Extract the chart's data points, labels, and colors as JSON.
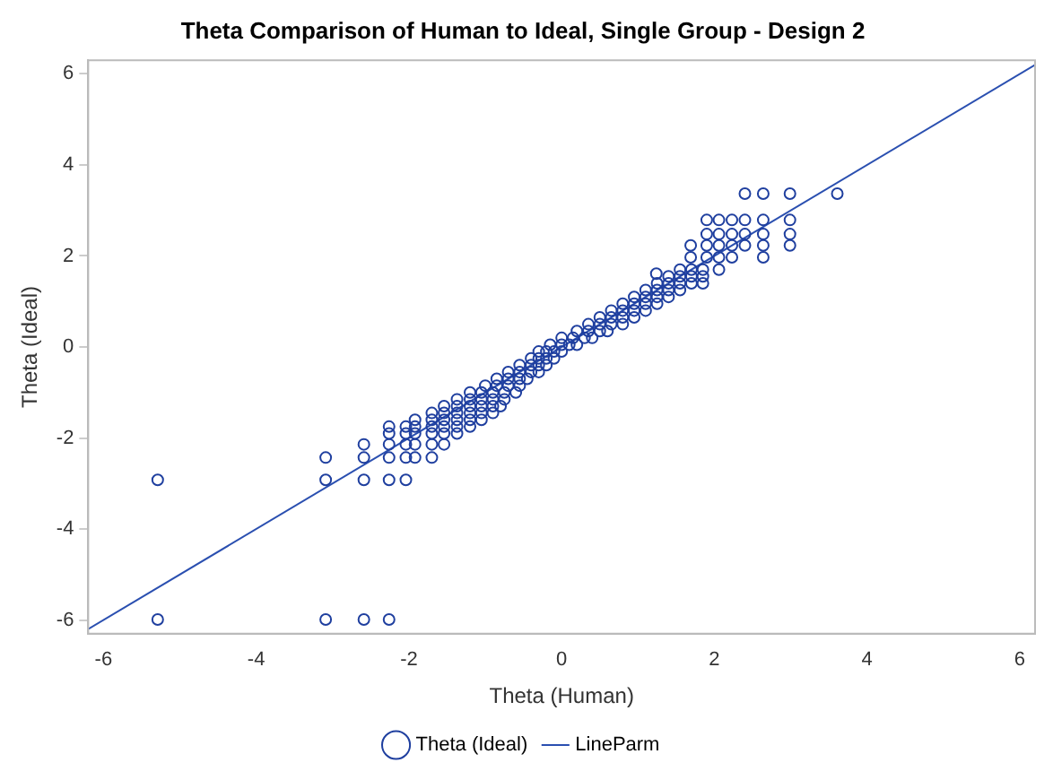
{
  "chart_data": {
    "type": "scatter",
    "title": "Theta Comparison of Human to Ideal, Single Group - Design 2",
    "xlabel": "Theta (Human)",
    "ylabel": "Theta (Ideal)",
    "xlim": [
      -6.2,
      6.2
    ],
    "ylim": [
      -6.3,
      6.3
    ],
    "xticks": [
      -6,
      -4,
      -2,
      0,
      2,
      4,
      6
    ],
    "yticks": [
      -6,
      -4,
      -2,
      0,
      2,
      4,
      6
    ],
    "grid": false,
    "legend": "bottom",
    "marker": "circle",
    "series": [
      {
        "name": "Theta (Ideal)",
        "color": "#1f3f9f",
        "x": [
          -5.29,
          -5.29,
          -3.09,
          -2.59,
          -2.26,
          -3.09,
          -2.59,
          -2.26,
          -2.04,
          -3.09,
          -2.59,
          -2.26,
          -2.04,
          -1.92,
          -1.7,
          -2.59,
          -2.26,
          -2.04,
          -1.92,
          -1.7,
          -1.54,
          -2.26,
          -2.04,
          -1.92,
          -1.7,
          -1.54,
          -1.37,
          -1.2,
          -2.26,
          -2.04,
          -1.92,
          -1.7,
          -1.54,
          -1.37,
          -1.92,
          -1.7,
          -1.54,
          -1.37,
          -1.2,
          -1.05,
          -1.7,
          -1.54,
          -1.37,
          -1.2,
          -1.05,
          -0.9,
          -1.54,
          -1.37,
          -1.2,
          -1.05,
          -0.9,
          -0.8,
          -1.37,
          -1.2,
          -1.05,
          -0.9,
          -0.75,
          -1.2,
          -1.05,
          -0.9,
          -0.75,
          -0.6,
          -1.0,
          -0.85,
          -0.7,
          -0.55,
          -0.85,
          -0.7,
          -0.55,
          -0.45,
          -0.7,
          -0.55,
          -0.4,
          -0.3,
          -0.55,
          -0.4,
          -0.3,
          -0.2,
          -0.4,
          -0.3,
          -0.2,
          -0.1,
          -0.3,
          -0.2,
          -0.1,
          0,
          -0.15,
          0,
          0.1,
          0.2,
          0,
          0.15,
          0.3,
          0.4,
          0.2,
          0.35,
          0.5,
          0.6,
          0.35,
          0.5,
          0.65,
          0.8,
          0.5,
          0.65,
          0.8,
          0.95,
          0.65,
          0.8,
          0.95,
          1.1,
          0.8,
          0.95,
          1.1,
          1.25,
          0.95,
          1.1,
          1.25,
          1.4,
          1.1,
          1.25,
          1.4,
          1.55,
          1.25,
          1.4,
          1.55,
          1.7,
          1.85,
          1.24,
          1.4,
          1.55,
          1.7,
          1.85,
          1.55,
          1.7,
          1.85,
          2.06,
          1.69,
          1.9,
          2.06,
          2.23,
          2.64,
          1.69,
          1.9,
          2.06,
          2.23,
          2.4,
          2.64,
          2.99,
          1.9,
          2.06,
          2.23,
          2.4,
          2.64,
          2.99,
          1.9,
          2.06,
          2.23,
          2.4,
          2.64,
          2.99,
          2.4,
          2.64,
          2.99,
          3.61
        ],
        "values": [
          -2.92,
          -5.99,
          -5.99,
          -5.99,
          -5.99,
          -2.92,
          -2.92,
          -2.92,
          -2.92,
          -2.43,
          -2.43,
          -2.43,
          -2.43,
          -2.43,
          -2.43,
          -2.14,
          -2.14,
          -2.14,
          -2.14,
          -2.14,
          -2.14,
          -1.75,
          -1.75,
          -1.75,
          -1.75,
          -1.75,
          -1.75,
          -1.75,
          -1.9,
          -1.9,
          -1.9,
          -1.9,
          -1.9,
          -1.9,
          -1.6,
          -1.6,
          -1.6,
          -1.6,
          -1.6,
          -1.6,
          -1.45,
          -1.45,
          -1.45,
          -1.45,
          -1.45,
          -1.45,
          -1.3,
          -1.3,
          -1.3,
          -1.3,
          -1.3,
          -1.3,
          -1.15,
          -1.15,
          -1.15,
          -1.15,
          -1.15,
          -1.0,
          -1.0,
          -1.0,
          -1.0,
          -1.0,
          -0.85,
          -0.85,
          -0.85,
          -0.85,
          -0.7,
          -0.7,
          -0.7,
          -0.7,
          -0.55,
          -0.55,
          -0.55,
          -0.55,
          -0.4,
          -0.4,
          -0.4,
          -0.4,
          -0.25,
          -0.25,
          -0.25,
          -0.25,
          -0.1,
          -0.1,
          -0.1,
          -0.1,
          0.05,
          0.05,
          0.05,
          0.05,
          0.2,
          0.2,
          0.2,
          0.2,
          0.35,
          0.35,
          0.35,
          0.35,
          0.5,
          0.5,
          0.5,
          0.5,
          0.65,
          0.65,
          0.65,
          0.65,
          0.8,
          0.8,
          0.8,
          0.8,
          0.95,
          0.95,
          0.95,
          0.95,
          1.1,
          1.1,
          1.1,
          1.1,
          1.25,
          1.25,
          1.25,
          1.25,
          1.4,
          1.4,
          1.4,
          1.4,
          1.4,
          1.61,
          1.55,
          1.55,
          1.55,
          1.55,
          1.7,
          1.7,
          1.7,
          1.7,
          1.97,
          1.97,
          1.97,
          1.97,
          1.97,
          2.23,
          2.23,
          2.23,
          2.23,
          2.23,
          2.23,
          2.23,
          2.48,
          2.48,
          2.48,
          2.48,
          2.48,
          2.48,
          2.79,
          2.79,
          2.79,
          2.79,
          2.79,
          2.79,
          3.37,
          3.37,
          3.37,
          3.37
        ]
      },
      {
        "name": "LineParm",
        "type": "line",
        "marker": "none",
        "color": "#2a4fb0",
        "x": [
          -6.2,
          6.2
        ],
        "values": [
          -6.2,
          6.2
        ]
      }
    ]
  }
}
